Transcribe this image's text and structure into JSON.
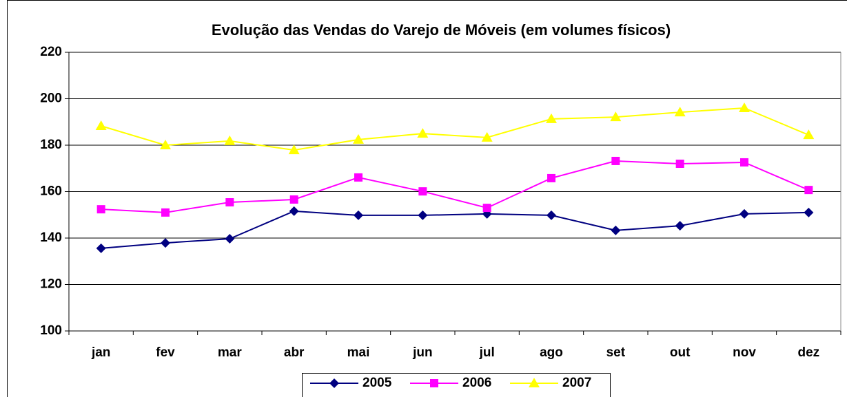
{
  "chart_data": {
    "type": "line",
    "title": "Evolução das Vendas do Varejo de Móveis (em volumes físicos)",
    "categories": [
      "jan",
      "fev",
      "mar",
      "abr",
      "mai",
      "jun",
      "jul",
      "ago",
      "set",
      "out",
      "nov",
      "dez"
    ],
    "series": [
      {
        "name": "2005",
        "color": "#000080",
        "marker": "diamond",
        "values": [
          135.6,
          137.9,
          139.7,
          151.6,
          149.8,
          149.8,
          150.4,
          149.8,
          143.3,
          145.3,
          150.4,
          151
        ]
      },
      {
        "name": "2006",
        "color": "#ff00ff",
        "marker": "square",
        "values": [
          152.4,
          151,
          155.4,
          156.6,
          166.1,
          160.1,
          153,
          165.8,
          173.2,
          172,
          172.6,
          160.7
        ]
      },
      {
        "name": "2007",
        "color": "#ffff00",
        "marker": "triangle",
        "values": [
          188.3,
          180,
          181.8,
          177.9,
          182.4,
          185,
          183.3,
          191.3,
          192.1,
          194.2,
          196,
          184.4
        ]
      }
    ],
    "ylim": [
      100,
      220
    ],
    "yticks": [
      100,
      120,
      140,
      160,
      180,
      200,
      220
    ],
    "grid": true,
    "legend": "bottom"
  }
}
